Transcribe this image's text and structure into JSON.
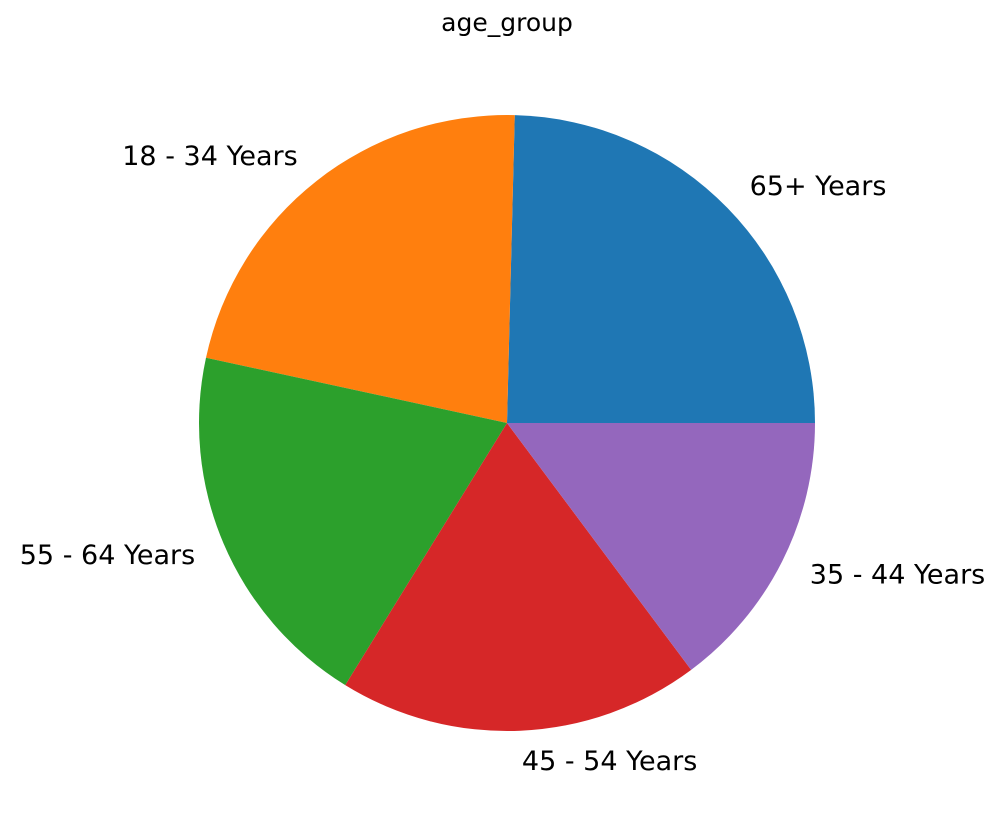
{
  "chart_data": {
    "type": "pie",
    "title": "age_group",
    "start_angle_deg": 0,
    "direction": "counterclockwise",
    "slices": [
      {
        "label": "65+ Years",
        "value": 24.6,
        "color": "#1f77b4"
      },
      {
        "label": "18 - 34 Years",
        "value": 22.0,
        "color": "#ff7f0e"
      },
      {
        "label": "55 - 64 Years",
        "value": 19.6,
        "color": "#2ca02c"
      },
      {
        "label": "45 - 54 Years",
        "value": 19.0,
        "color": "#d62728"
      },
      {
        "label": "35 - 44 Years",
        "value": 14.8,
        "color": "#9467bd"
      }
    ]
  }
}
